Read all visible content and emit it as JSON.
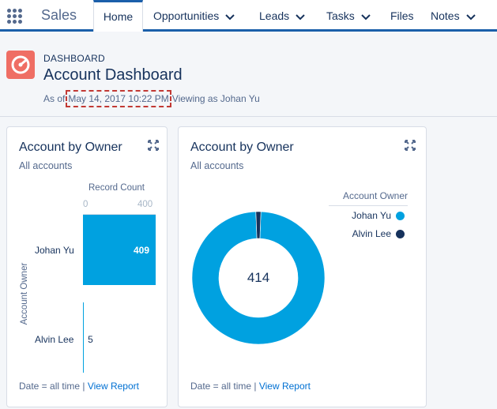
{
  "nav": {
    "app_name": "Sales",
    "tabs": [
      {
        "label": "Home"
      },
      {
        "label": "Opportunities"
      },
      {
        "label": "Leads"
      },
      {
        "label": "Tasks"
      },
      {
        "label": "Files"
      },
      {
        "label": "Notes"
      }
    ]
  },
  "header": {
    "eyebrow": "DASHBOARD",
    "title": "Account Dashboard",
    "as_of": "As of",
    "date": "May 14, 2017 10:22 PM",
    "viewing": "Viewing as Johan Yu"
  },
  "colors": {
    "accent": "#1b5faa",
    "dashboard_icon": "#ef6e64",
    "series_johan": "#00a1e0",
    "series_alvin": "#16325c",
    "link": "#0070d2"
  },
  "bar_card": {
    "title": "Account by Owner",
    "subtitle": "All accounts",
    "footer_text": "Date = all time |",
    "footer_link": "View Report"
  },
  "donut_card": {
    "title": "Account by Owner",
    "subtitle": "All accounts",
    "footer_text": "Date = all time |",
    "footer_link": "View Report"
  },
  "chart_data": [
    {
      "type": "bar",
      "orientation": "horizontal",
      "categories": [
        "Johan Yu",
        "Alvin Lee"
      ],
      "values": [
        409,
        5
      ],
      "value_labels": [
        "409",
        "5"
      ],
      "xlabel": "Record Count",
      "ylabel": "Account Owner",
      "xlim": [
        0,
        400
      ],
      "ticks": [
        "0",
        "400"
      ]
    },
    {
      "type": "pie",
      "donut": true,
      "total_label": "414",
      "legend_title": "Account Owner",
      "legend_position": "right",
      "labels": [
        "Johan Yu",
        "Alvin Lee"
      ],
      "values": [
        409,
        5
      ]
    }
  ]
}
